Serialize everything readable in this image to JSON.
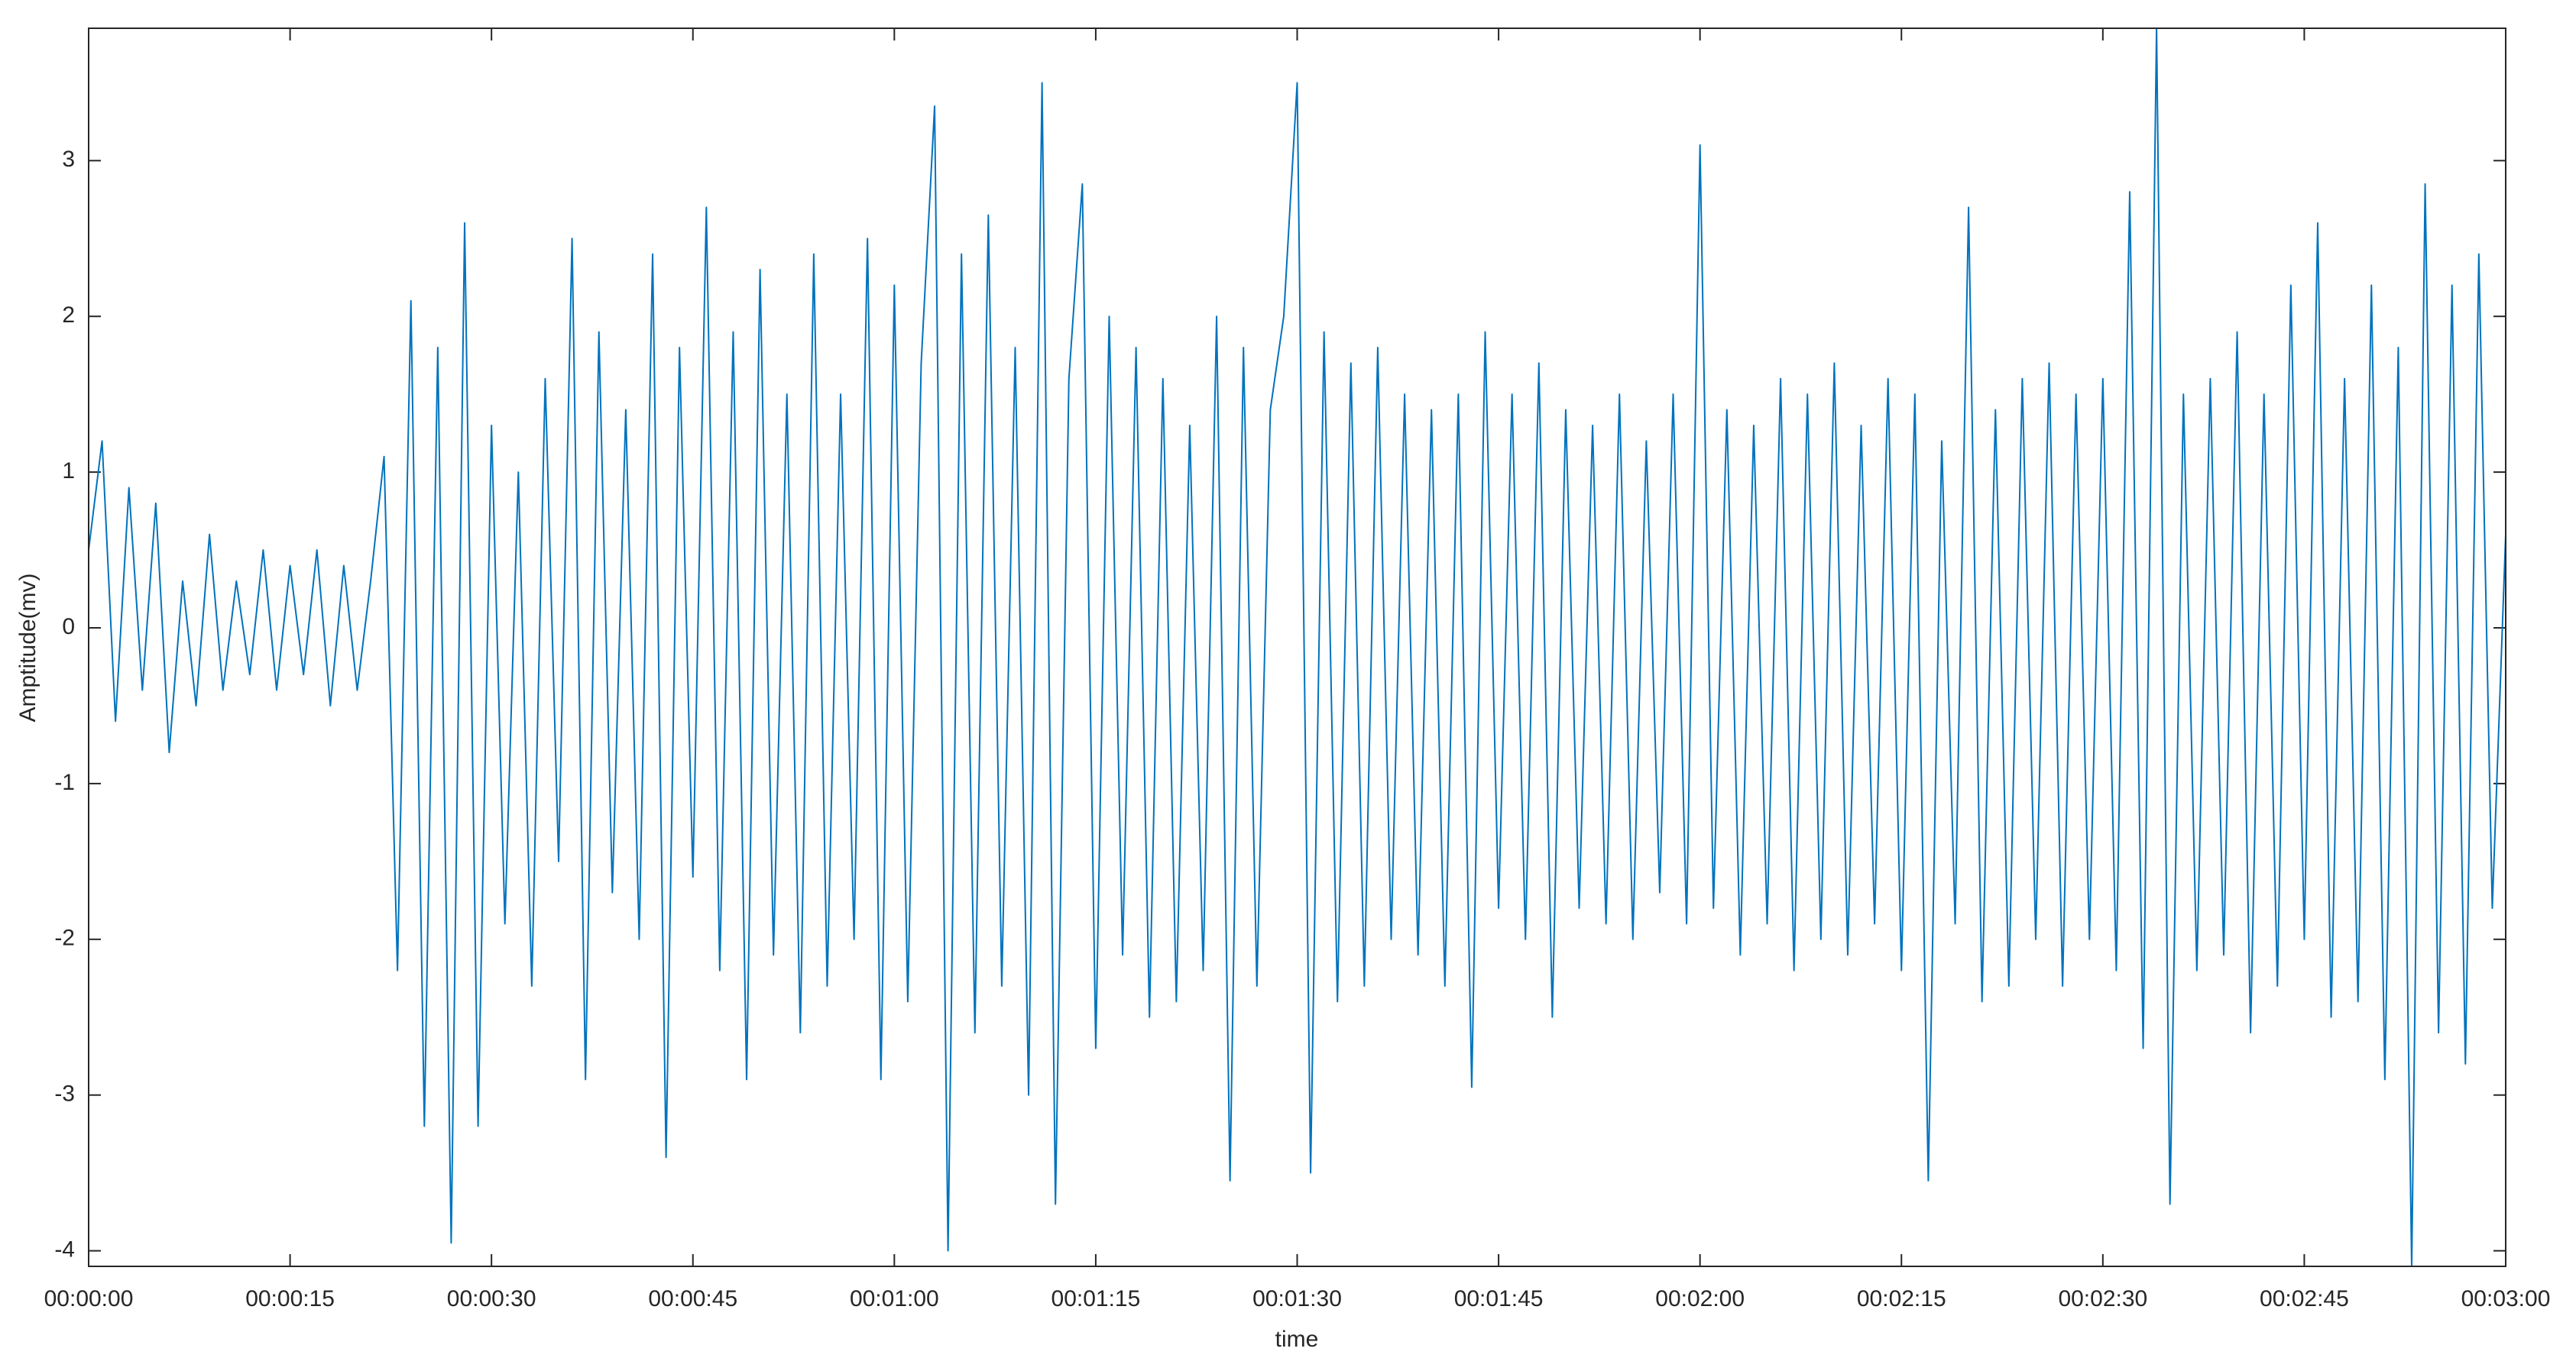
{
  "chart_data": {
    "type": "line",
    "x_label": "time",
    "y_label": "Amptitude(mv)",
    "xlim": [
      0,
      180
    ],
    "ylim": [
      -4.1,
      3.85
    ],
    "xticks": [
      {
        "value": 0,
        "label": "00:00:00"
      },
      {
        "value": 15,
        "label": "00:00:15"
      },
      {
        "value": 30,
        "label": "00:00:30"
      },
      {
        "value": 45,
        "label": "00:00:45"
      },
      {
        "value": 60,
        "label": "00:01:00"
      },
      {
        "value": 75,
        "label": "00:01:15"
      },
      {
        "value": 90,
        "label": "00:01:30"
      },
      {
        "value": 105,
        "label": "00:01:45"
      },
      {
        "value": 120,
        "label": "00:02:00"
      },
      {
        "value": 135,
        "label": "00:02:15"
      },
      {
        "value": 150,
        "label": "00:02:30"
      },
      {
        "value": 165,
        "label": "00:02:45"
      },
      {
        "value": 180,
        "label": "00:03:00"
      }
    ],
    "yticks": [
      -4,
      -3,
      -2,
      -1,
      0,
      1,
      2,
      3
    ],
    "grid": false,
    "x": [
      0,
      1,
      2,
      3,
      4,
      5,
      6,
      7,
      8,
      9,
      10,
      11,
      12,
      13,
      14,
      15,
      16,
      17,
      18,
      19,
      20,
      21,
      22,
      23,
      24,
      25,
      26,
      27,
      28,
      29,
      30,
      31,
      32,
      33,
      34,
      35,
      36,
      37,
      38,
      39,
      40,
      41,
      42,
      43,
      44,
      45,
      46,
      47,
      48,
      49,
      50,
      51,
      52,
      53,
      54,
      55,
      56,
      57,
      58,
      59,
      60,
      61,
      62,
      63,
      64,
      65,
      66,
      67,
      68,
      69,
      70,
      71,
      72,
      73,
      74,
      75,
      76,
      77,
      78,
      79,
      80,
      81,
      82,
      83,
      84,
      85,
      86,
      87,
      88,
      89,
      90,
      91,
      92,
      93,
      94,
      95,
      96,
      97,
      98,
      99,
      100,
      101,
      102,
      103,
      104,
      105,
      106,
      107,
      108,
      109,
      110,
      111,
      112,
      113,
      114,
      115,
      116,
      117,
      118,
      119,
      120,
      121,
      122,
      123,
      124,
      125,
      126,
      127,
      128,
      129,
      130,
      131,
      132,
      133,
      134,
      135,
      136,
      137,
      138,
      139,
      140,
      141,
      142,
      143,
      144,
      145,
      146,
      147,
      148,
      149,
      150,
      151,
      152,
      153,
      154,
      155,
      156,
      157,
      158,
      159,
      160,
      161,
      162,
      163,
      164,
      165,
      166,
      167,
      168,
      169,
      170,
      171,
      172,
      173,
      174,
      175,
      176,
      177,
      178,
      179,
      180
    ],
    "series": [
      {
        "color": "#0072bd",
        "values": [
          0.5,
          1.2,
          -0.6,
          0.9,
          -0.4,
          0.8,
          -0.8,
          0.3,
          -0.5,
          0.6,
          -0.4,
          0.3,
          -0.3,
          0.5,
          -0.4,
          0.4,
          -0.3,
          0.5,
          -0.5,
          0.4,
          -0.4,
          0.3,
          1.1,
          -2.2,
          2.1,
          -3.2,
          1.8,
          -3.95,
          2.6,
          -3.2,
          1.3,
          -1.9,
          1.0,
          -2.3,
          1.6,
          -1.5,
          2.5,
          -2.9,
          1.9,
          -1.7,
          1.4,
          -2.0,
          2.4,
          -3.4,
          1.8,
          -1.6,
          2.7,
          -2.2,
          1.9,
          -2.9,
          2.3,
          -2.1,
          1.5,
          -2.6,
          2.4,
          -2.3,
          1.5,
          -2.0,
          2.5,
          -2.9,
          2.2,
          -2.4,
          1.7,
          3.35,
          -4.0,
          2.4,
          -2.6,
          2.65,
          -2.3,
          1.8,
          -3.0,
          3.5,
          -3.7,
          1.6,
          2.85,
          -2.7,
          2.0,
          -2.1,
          1.8,
          -2.5,
          1.6,
          -2.4,
          1.3,
          -2.2,
          2.0,
          -3.55,
          1.8,
          -2.3,
          1.4,
          2.0,
          3.5,
          -3.5,
          1.9,
          -2.4,
          1.7,
          -2.3,
          1.8,
          -2.0,
          1.5,
          -2.1,
          1.4,
          -2.3,
          1.5,
          -2.95,
          1.9,
          -1.8,
          1.5,
          -2.0,
          1.7,
          -2.5,
          1.4,
          -1.8,
          1.3,
          -1.9,
          1.5,
          -2.0,
          1.2,
          -1.7,
          1.5,
          -1.9,
          3.1,
          -1.8,
          1.4,
          -2.1,
          1.3,
          -1.9,
          1.6,
          -2.2,
          1.5,
          -2.0,
          1.7,
          -2.1,
          1.3,
          -1.9,
          1.6,
          -2.2,
          1.5,
          -3.55,
          1.2,
          -1.9,
          2.7,
          -2.4,
          1.4,
          -2.3,
          1.6,
          -2.0,
          1.7,
          -2.3,
          1.5,
          -2.0,
          1.6,
          -2.2,
          2.8,
          -2.7,
          3.85,
          -3.7,
          1.5,
          -2.2,
          1.6,
          -2.1,
          1.9,
          -2.6,
          1.5,
          -2.3,
          2.2,
          -2.0,
          2.6,
          -2.5,
          1.6,
          -2.4,
          2.2,
          -2.9,
          1.8,
          -4.1,
          2.85,
          -2.6,
          2.2,
          -2.8,
          2.4,
          -1.8,
          0.6
        ]
      }
    ]
  }
}
